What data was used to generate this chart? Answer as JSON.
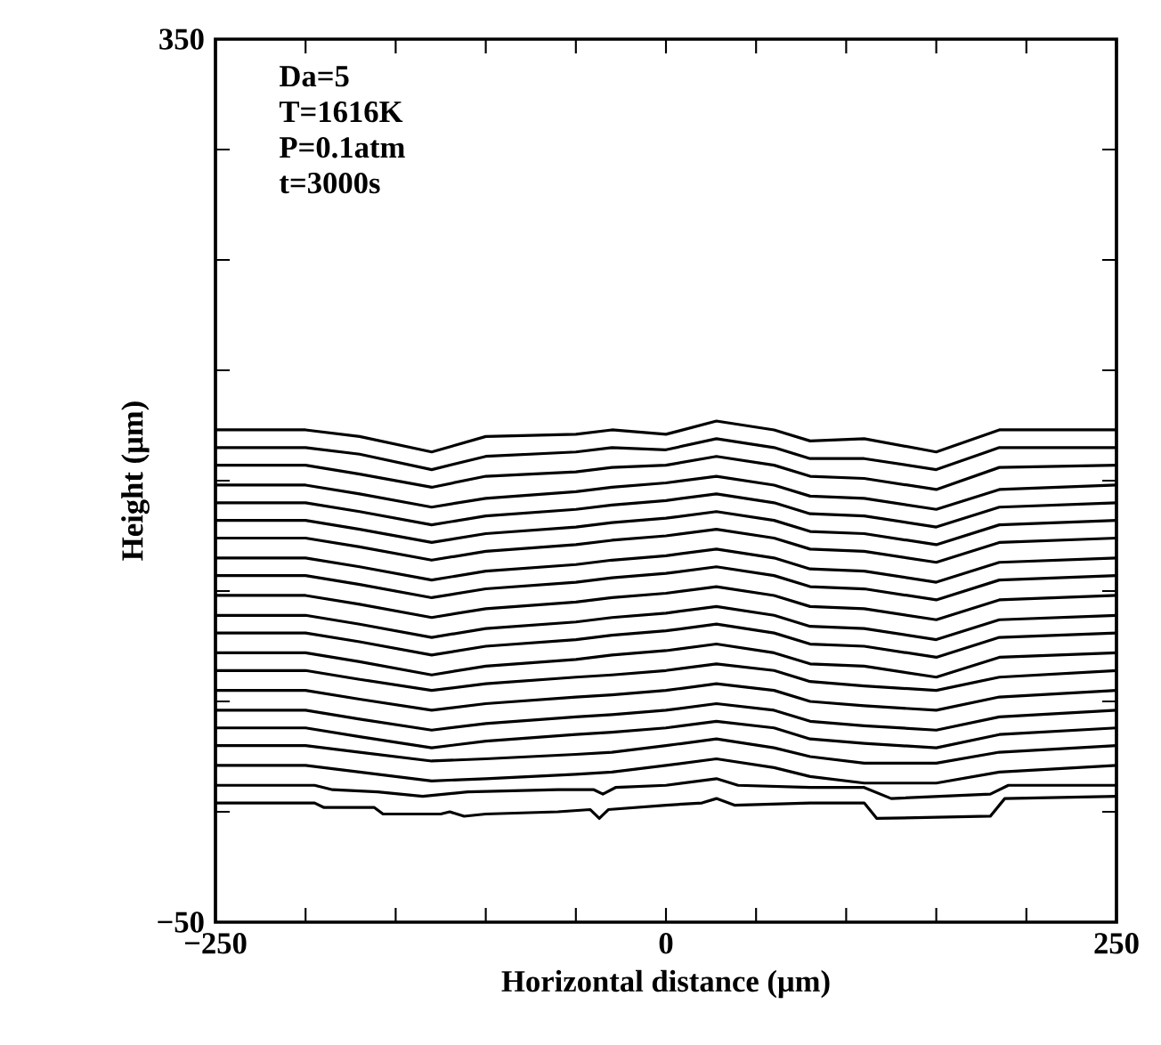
{
  "chart_data": {
    "type": "line",
    "xlabel": "Horizontal distance (μm)",
    "ylabel": "Height (μm)",
    "annotations": [
      "Da=5",
      "T=1616K",
      "P=0.1atm",
      "t=3000s"
    ],
    "xlim": [
      -250,
      250
    ],
    "ylim": [
      -50,
      350
    ],
    "xticks": [
      {
        "value": -250,
        "label": "−250"
      },
      {
        "value": -200,
        "label": null
      },
      {
        "value": -150,
        "label": null
      },
      {
        "value": -100,
        "label": null
      },
      {
        "value": -50,
        "label": null
      },
      0,
      {
        "value": 50,
        "label": null
      },
      {
        "value": 100,
        "label": null
      },
      {
        "value": 150,
        "label": null
      },
      {
        "value": 200,
        "label": null
      },
      250
    ],
    "yticks": [
      {
        "value": -50,
        "label": "−50"
      },
      {
        "value": 0,
        "label": null
      },
      {
        "value": 50,
        "label": null
      },
      {
        "value": 100,
        "label": null
      },
      {
        "value": 150,
        "label": null
      },
      {
        "value": 200,
        "label": null
      },
      {
        "value": 250,
        "label": null
      },
      {
        "value": 300,
        "label": null
      },
      350
    ],
    "grid": false,
    "marker": "none",
    "line_style": "solid",
    "x": [
      -250,
      -200,
      -170,
      -130,
      -100,
      -50,
      -30,
      0,
      28,
      60,
      80,
      110,
      150,
      185,
      250
    ],
    "series": [
      {
        "color": "#000000",
        "values": [
          173,
          173,
          170,
          163,
          170,
          171,
          173,
          171,
          177,
          173,
          168,
          169,
          163,
          173,
          173
        ]
      },
      {
        "color": "#000000",
        "values": [
          165,
          165,
          162,
          155,
          161,
          163,
          165,
          164,
          169,
          165,
          160,
          160,
          155,
          165,
          165
        ]
      },
      {
        "color": "#000000",
        "values": [
          157,
          157,
          153,
          147,
          152,
          154,
          156,
          157,
          161,
          157,
          152,
          151,
          146,
          156,
          157
        ]
      },
      {
        "color": "#000000",
        "values": [
          148,
          148,
          144,
          138,
          142,
          145,
          147,
          149,
          152,
          148,
          143,
          142,
          137,
          146,
          148
        ]
      },
      {
        "color": "#000000",
        "values": [
          140,
          140,
          136,
          130,
          134,
          137,
          139,
          141,
          144,
          140,
          135,
          134,
          129,
          138,
          140
        ]
      },
      {
        "color": "#000000",
        "values": [
          132,
          132,
          128,
          122,
          126,
          129,
          131,
          133,
          136,
          132,
          127,
          126,
          121,
          130,
          132
        ]
      },
      {
        "color": "#000000",
        "values": [
          124,
          124,
          120,
          114,
          118,
          121,
          123,
          125,
          128,
          124,
          119,
          118,
          113,
          122,
          124
        ]
      },
      {
        "color": "#000000",
        "values": [
          115,
          115,
          111,
          105,
          109,
          112,
          114,
          116,
          119,
          115,
          110,
          109,
          104,
          113,
          115
        ]
      },
      {
        "color": "#000000",
        "values": [
          107,
          107,
          103,
          97,
          101,
          104,
          106,
          108,
          111,
          107,
          102,
          101,
          96,
          105,
          107
        ]
      },
      {
        "color": "#000000",
        "values": [
          98,
          98,
          94,
          88,
          92,
          95,
          97,
          99,
          102,
          98,
          93,
          92,
          87,
          96,
          98
        ]
      },
      {
        "color": "#000000",
        "values": [
          89,
          89,
          85,
          79,
          83,
          86,
          88,
          90,
          93,
          89,
          84,
          83,
          78,
          87,
          89
        ]
      },
      {
        "color": "#000000",
        "values": [
          81,
          81,
          77,
          71,
          75,
          78,
          80,
          82,
          85,
          81,
          76,
          75,
          70,
          79,
          81
        ]
      },
      {
        "color": "#000000",
        "values": [
          72,
          72,
          68,
          62,
          66,
          69,
          71,
          73,
          76,
          72,
          67,
          66,
          61,
          70,
          72
        ]
      },
      {
        "color": "#000000",
        "values": [
          64,
          64,
          60,
          55,
          58,
          61,
          62,
          64,
          67,
          64,
          59,
          57,
          55,
          61,
          64
        ]
      },
      {
        "color": "#000000",
        "values": [
          55,
          55,
          51,
          46,
          49,
          52,
          53,
          55,
          58,
          55,
          50,
          48,
          46,
          52,
          55
        ]
      },
      {
        "color": "#000000",
        "values": [
          46,
          46,
          42,
          37,
          40,
          43,
          44,
          46,
          49,
          46,
          41,
          39,
          37,
          43,
          46
        ]
      },
      {
        "color": "#000000",
        "values": [
          38,
          38,
          34,
          29,
          32,
          35,
          36,
          38,
          41,
          38,
          33,
          31,
          29,
          35,
          38
        ]
      },
      {
        "color": "#000000",
        "values": [
          30,
          30,
          27,
          23,
          24,
          26,
          27,
          30,
          33,
          29,
          25,
          22,
          22,
          27,
          30
        ]
      },
      {
        "color": "#000000",
        "values": [
          21,
          21,
          18,
          14,
          15,
          17,
          18,
          21,
          24,
          20,
          16,
          13,
          13,
          18,
          21
        ]
      },
      {
        "color": "#000000",
        "x": [
          -250,
          -195,
          -185,
          -160,
          -135,
          -110,
          -60,
          -40,
          -35,
          -28,
          0,
          28,
          40,
          80,
          110,
          125,
          180,
          190,
          250
        ],
        "values": [
          12,
          12,
          10,
          9,
          7,
          9,
          10,
          10,
          8,
          11,
          12,
          15,
          12,
          11,
          11,
          6,
          8,
          12,
          12
        ]
      },
      {
        "color": "#000000",
        "x": [
          -250,
          -195,
          -190,
          -162,
          -157,
          -125,
          -120,
          -112,
          -100,
          -60,
          -42,
          -37,
          -32,
          0,
          20,
          28,
          38,
          80,
          110,
          117,
          180,
          188,
          250
        ],
        "values": [
          4,
          4,
          2,
          2,
          -1,
          -1,
          0,
          -2,
          -1,
          0,
          1,
          -3,
          1,
          3,
          4,
          6,
          3,
          4,
          4,
          -3,
          -2,
          6,
          7
        ]
      }
    ]
  }
}
